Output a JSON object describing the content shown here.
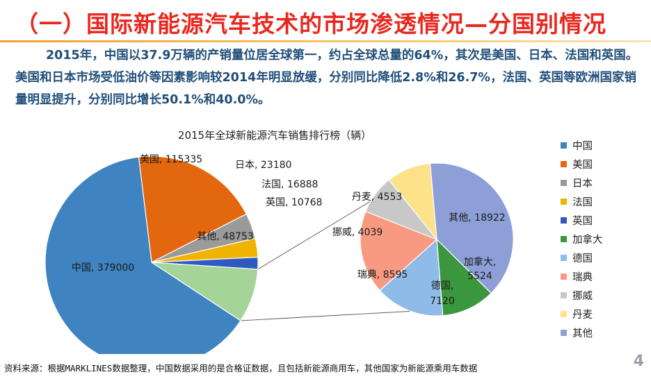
{
  "slide": {
    "title": "（一）国际新能源汽车技术的市场渗透情况—分国别情况",
    "summary": "2015年，中国以37.9万辆的产销量位居全球第一，约占全球总量的64%，其次是美国、日本、法国和英国。美国和日本市场受低油价等因素影响较2014年明显放缓，分别同比降低2.8%和26.7%，法国、英国等欧洲国家销量明显提升，分别同比增长50.1%和40.0%。",
    "footer": "资料来源：根据MARKLINES数据整理，中国数据采用的是合格证数据，且包括新能源商用车，其他国家为新能源乘用车数据",
    "page_number": "4"
  },
  "chart_data": {
    "type": "pie",
    "title": "2015年全球新能源汽车销售排行榜（辆）",
    "main_pie": {
      "slices": [
        {
          "name": "中国",
          "value": 379000,
          "label": "中国, 379000",
          "color": "#3f83c0"
        },
        {
          "name": "美国",
          "value": 115335,
          "label": "美国, 115335",
          "color": "#e2670e"
        },
        {
          "name": "日本",
          "value": 23180,
          "label": "日本, 23180",
          "color": "#9a9a9a"
        },
        {
          "name": "法国",
          "value": 16888,
          "label": "法国, 16888",
          "color": "#f0b400"
        },
        {
          "name": "英国",
          "value": 10768,
          "label": "英国, 10768",
          "color": "#2f5bbf"
        },
        {
          "name": "其他",
          "value": 48753,
          "label": "其他, 48753",
          "color": "#a4d497"
        }
      ]
    },
    "detail_pie": {
      "of": "其他",
      "slices": [
        {
          "name": "加拿大",
          "value": 5524,
          "label": "加拿大, 5524",
          "color": "#3a973d"
        },
        {
          "name": "德国",
          "value": 7120,
          "label": "德国, 7120",
          "color": "#8fbbe8"
        },
        {
          "name": "瑞典",
          "value": 8595,
          "label": "瑞典, 8595",
          "color": "#f89a82"
        },
        {
          "name": "挪威",
          "value": 4039,
          "label": "挪威, 4039",
          "color": "#c8c8c8"
        },
        {
          "name": "丹麦",
          "value": 4553,
          "label": "丹麦, 4553",
          "color": "#fde28a"
        },
        {
          "name": "其他",
          "value": 18922,
          "label": "其他, 18922",
          "color": "#8e9fd8"
        }
      ]
    },
    "legend": {
      "position": "right",
      "items": [
        {
          "name": "中国",
          "color": "#3f83c0"
        },
        {
          "name": "美国",
          "color": "#e2670e"
        },
        {
          "name": "日本",
          "color": "#9a9a9a"
        },
        {
          "name": "法国",
          "color": "#f0b400"
        },
        {
          "name": "英国",
          "color": "#2f5bbf"
        },
        {
          "name": "加拿大",
          "color": "#3a973d"
        },
        {
          "name": "德国",
          "color": "#8fbbe8"
        },
        {
          "name": "瑞典",
          "color": "#f89a82"
        },
        {
          "name": "挪威",
          "color": "#c8c8c8"
        },
        {
          "name": "丹麦",
          "color": "#fde28a"
        },
        {
          "name": "其他",
          "color": "#8e9fd8"
        }
      ]
    }
  }
}
